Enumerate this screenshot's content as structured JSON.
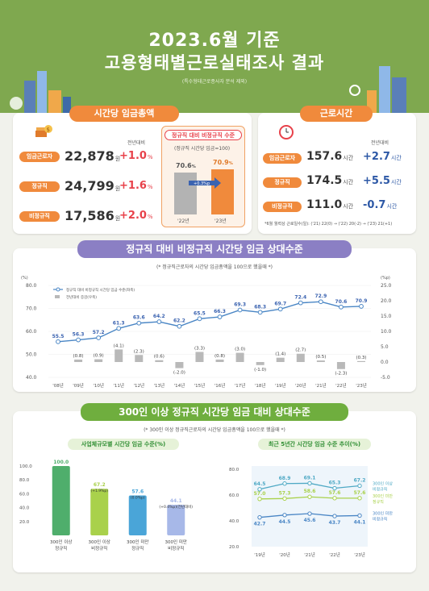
{
  "header": {
    "title_line1": "2023.6월 기준",
    "title_line2": "고용형태별근로실태조사 결과",
    "note": "(특수형태근로종사자 분석 제외)"
  },
  "wage_section": {
    "ribbon": "시간당 임금총액",
    "compare_label": "전년대비",
    "rows": [
      {
        "label": "임금근로자",
        "value": "22,878",
        "unit": "원",
        "change": "+1.0",
        "change_unit": "%"
      },
      {
        "label": "정규직",
        "value": "24,799",
        "unit": "원",
        "change": "+1.6",
        "change_unit": "%"
      },
      {
        "label": "비정규직",
        "value": "17,586",
        "unit": "원",
        "change": "+2.0",
        "change_unit": "%"
      }
    ],
    "ratio_box": {
      "title": "정규직 대비 비정규직 수준",
      "subtitle": "(정규직 시간당 임금=100)",
      "bars": [
        {
          "label": "'22년",
          "value": 70.6,
          "value_text": "70.6",
          "unit": "%"
        },
        {
          "label": "'23년",
          "value": 70.9,
          "value_text": "70.9",
          "unit": "%"
        }
      ],
      "arrow_text": "+0.3",
      "arrow_unit": "%p"
    }
  },
  "hours_section": {
    "ribbon": "근로시간",
    "compare_label": "전년대비",
    "rows": [
      {
        "label": "임금근로자",
        "value": "157.6",
        "unit": "시간",
        "change": "+2.7",
        "change_unit": "시간"
      },
      {
        "label": "정규직",
        "value": "174.5",
        "unit": "시간",
        "change": "+5.5",
        "change_unit": "시간"
      },
      {
        "label": "비정규직",
        "value": "111.0",
        "unit": "시간",
        "change": "-0.7",
        "change_unit": "시간"
      }
    ],
    "footnote": "*6월 월력상 근로일수(일): ('21) 22(0) → ('22) 20(-2) → ('23) 21(+1)"
  },
  "trend_section": {
    "ribbon": "정규직 대비 비정규직 시간당 임금 상대수준",
    "note": "(* 정규직근로자의 시간당 임금총액을 100으로 했을때 *)",
    "left_unit": "(%)",
    "right_unit": "(%p)",
    "legend_line": "정규직 대비 비정규직 시간당 임금 수준(좌축)",
    "legend_bar": "전년대비 증감(우축)"
  },
  "firm_section": {
    "ribbon": "300인 이상 정규직 시간당 임금 대비 상대수준",
    "note": "(* 300인 이상 정규직근로자의 시간당 임금총액을 100으로 했을때 *)",
    "left_subtitle": "사업체규모별 시간당 임금 수준(%)",
    "right_subtitle": "최근 5년간 시간당 임금 수준 추이(%)",
    "left_bar_notes": [
      {
        "label": "",
        "change": ""
      },
      {
        "label": "",
        "change": "(+1.9%p)"
      },
      {
        "label": "",
        "change": "(0.0%p)"
      },
      {
        "label": "",
        "change": "(+0.4%p)(전년대비)"
      }
    ]
  },
  "chart_data": [
    {
      "type": "line",
      "title": "정규직 대비 비정규직 시간당 임금 상대수준",
      "x": [
        "'08년",
        "'09년",
        "'10년",
        "'11년",
        "'12년",
        "'13년",
        "'14년",
        "'15년",
        "'16년",
        "'17년",
        "'18년",
        "'19년",
        "'20년",
        "'21년",
        "'22년",
        "'23년"
      ],
      "series": [
        {
          "name": "정규직 대비 비정규직 시간당 임금 수준(좌축)",
          "values": [
            55.5,
            56.3,
            57.2,
            61.3,
            63.6,
            64.2,
            62.2,
            65.5,
            66.3,
            69.3,
            68.3,
            69.7,
            72.4,
            72.9,
            70.6,
            70.9
          ],
          "color": "#4a86c5"
        },
        {
          "name": "전년대비 증감(우축)",
          "type": "bar",
          "values": [
            null,
            0.8,
            0.9,
            4.1,
            2.3,
            0.6,
            -2.0,
            3.3,
            0.8,
            3.0,
            -1.0,
            1.4,
            2.7,
            0.5,
            -2.3,
            0.3
          ],
          "labels": [
            "",
            "(0.8)",
            "(0.9)",
            "(4.1)",
            "(2.3)",
            "(0.6)",
            "(-2.0)",
            "(3.3)",
            "(0.8)",
            "(3.0)",
            "(-1.0)",
            "(1.4)",
            "(2.7)",
            "(0.5)",
            "(-2.3)",
            "(0.3)"
          ],
          "color": "#b9b9b9"
        }
      ],
      "ylim": [
        40,
        80
      ],
      "yticks": [
        "40.0",
        "50.0",
        "60.0",
        "70.0",
        "80.0"
      ],
      "y2lim": [
        -5,
        25
      ],
      "y2ticks": [
        "-5.0",
        "0.0",
        "5.0",
        "10.0",
        "15.0",
        "20.0",
        "25.0"
      ]
    },
    {
      "type": "bar",
      "title": "사업체규모별 시간당 임금 수준(%)",
      "categories": [
        "300인 이상 정규직",
        "300인 이상 비정규직",
        "300인 미만 정규직",
        "300인 미만 비정규직"
      ],
      "values": [
        100.0,
        67.2,
        57.6,
        44.1
      ],
      "value_labels": [
        "100.0",
        "67.2",
        "57.6",
        "44.1"
      ],
      "colors": [
        "#4fae6c",
        "#a9d14b",
        "#4aa5d8",
        "#a7b8e8"
      ],
      "ylim": [
        0,
        100
      ],
      "yticks": [
        "20.0",
        "40.0",
        "60.0",
        "80.0",
        "100.0"
      ]
    },
    {
      "type": "line",
      "title": "최근 5년간 시간당 임금 수준 추이(%)",
      "x": [
        "'19년",
        "'20년",
        "'21년",
        "'22년",
        "'23년"
      ],
      "series": [
        {
          "name": "300인 이상 비정규직",
          "values": [
            64.5,
            68.9,
            69.1,
            65.3,
            67.2
          ],
          "value_labels": [
            "64.5",
            "68.9",
            "69.1",
            "65.3",
            "67.2"
          ],
          "color": "#4fa9c5"
        },
        {
          "name": "300인 미만 정규직",
          "values": [
            57.0,
            57.3,
            58.6,
            57.6,
            57.6
          ],
          "value_labels": [
            "57.0",
            "57.3",
            "58.6",
            "57.6",
            "57.6"
          ],
          "color": "#a9d14b"
        },
        {
          "name": "300인 미만 비정규직",
          "values": [
            42.7,
            44.5,
            45.6,
            43.7,
            44.1
          ],
          "value_labels": [
            "42.7",
            "44.5",
            "45.6",
            "43.7",
            "44.1"
          ],
          "color": "#4a86c5"
        }
      ],
      "ylim": [
        20,
        80
      ],
      "yticks": [
        "20.0",
        "40.0",
        "60.0",
        "80.0"
      ]
    }
  ]
}
